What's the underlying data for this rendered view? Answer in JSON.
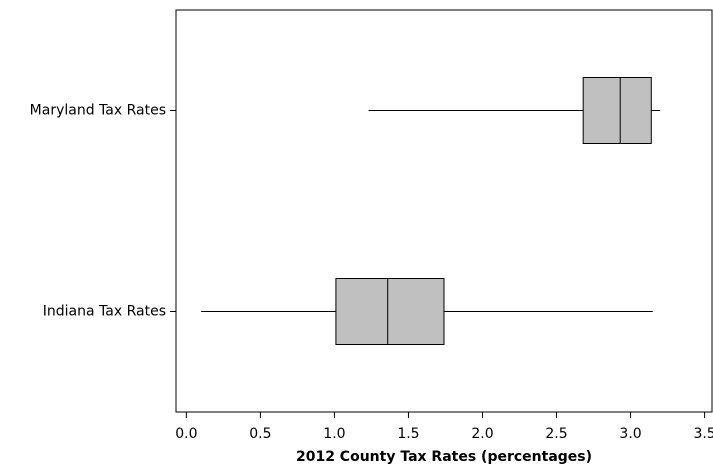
{
  "chart_data": {
    "type": "boxplot",
    "orientation": "horizontal",
    "x_label": "2012 County Tax Rates (percentages)",
    "categories": [
      "Maryland Tax Rates",
      "Indiana Tax Rates"
    ],
    "boxes": [
      {
        "min": 1.23,
        "q1": 2.68,
        "median": 2.93,
        "q3": 3.14,
        "max": 3.2
      },
      {
        "min": 0.1,
        "q1": 1.01,
        "median": 1.36,
        "q3": 1.74,
        "max": 3.15
      }
    ],
    "color": "#c0c0c0",
    "xlim": [
      -0.07,
      3.55
    ],
    "xticks": [
      {
        "value": 0,
        "label": "0.0"
      },
      0.5,
      {
        "value": 1,
        "label": "1.0"
      },
      1.5,
      {
        "value": 2,
        "label": "2.0"
      },
      2.5,
      {
        "value": 3,
        "label": "3.0"
      },
      3.5
    ],
    "grid": false
  }
}
